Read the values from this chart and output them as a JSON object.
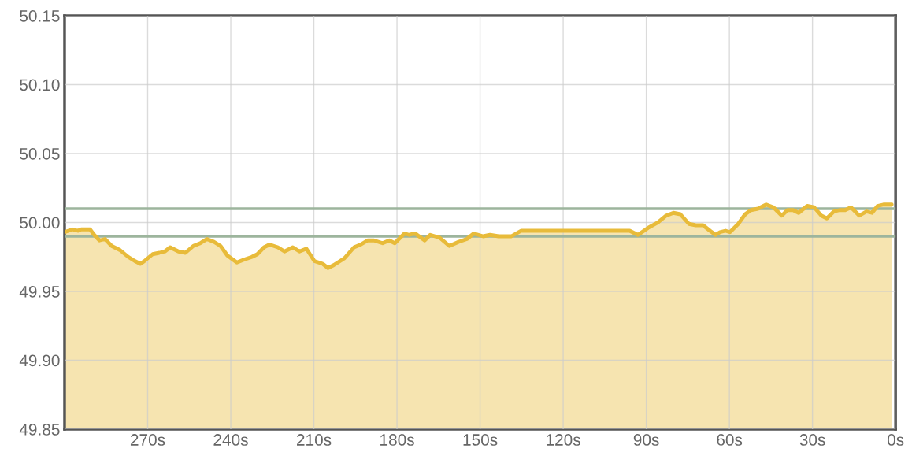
{
  "chart_data": {
    "type": "area",
    "color": "#e8bb3a",
    "x": [
      300,
      297.2,
      295.2,
      294,
      290.8,
      289.3,
      287.4,
      285.4,
      283,
      280,
      277,
      274.6,
      272.6,
      271.2,
      268.2,
      265.8,
      263.8,
      261.9,
      258.9,
      256.4,
      253.5,
      251,
      248.6,
      246.1,
      243.7,
      241.2,
      237.8,
      235.3,
      232.4,
      230.4,
      228,
      226,
      223,
      220.6,
      217.6,
      215.2,
      212.7,
      209.8,
      206.8,
      204.9,
      202.9,
      199,
      195.5,
      193.1,
      190.6,
      188.3,
      185.2,
      182.8,
      180.8,
      177.3,
      175.6,
      173.4,
      170,
      168,
      164.6,
      161.1,
      157.7,
      154.8,
      152.3,
      148.9,
      146.4,
      143.3,
      138.7,
      135.2,
      96,
      93,
      89.4,
      85.8,
      82.8,
      80.2,
      77.7,
      74.6,
      72.1,
      69.5,
      67,
      65,
      63.4,
      61.4,
      59.8,
      56.8,
      54.3,
      52.2,
      49.7,
      46.7,
      44.1,
      41.1,
      39,
      37,
      35,
      31.9,
      29.4,
      26.8,
      24.8,
      22.3,
      20.2,
      18.2,
      16.1,
      13.1,
      10.5,
      8.5,
      6.5,
      4.4,
      1.4
    ],
    "values": [
      49.993,
      49.995,
      49.994,
      49.995,
      49.995,
      49.991,
      49.987,
      49.988,
      49.983,
      49.98,
      49.975,
      49.972,
      49.97,
      49.972,
      49.977,
      49.978,
      49.979,
      49.982,
      49.979,
      49.978,
      49.983,
      49.985,
      49.988,
      49.986,
      49.983,
      49.976,
      49.971,
      49.973,
      49.975,
      49.977,
      49.982,
      49.984,
      49.982,
      49.979,
      49.982,
      49.979,
      49.981,
      49.972,
      49.97,
      49.967,
      49.969,
      49.974,
      49.982,
      49.984,
      49.987,
      49.987,
      49.985,
      49.987,
      49.985,
      49.992,
      49.991,
      49.992,
      49.987,
      49.991,
      49.989,
      49.983,
      49.986,
      49.988,
      49.992,
      49.99,
      49.991,
      49.99,
      49.99,
      49.994,
      49.994,
      49.991,
      49.996,
      50.0,
      50.005,
      50.007,
      50.006,
      49.999,
      49.998,
      49.998,
      49.994,
      49.991,
      49.993,
      49.994,
      49.993,
      49.999,
      50.006,
      50.009,
      50.01,
      50.013,
      50.011,
      50.005,
      50.009,
      50.009,
      50.007,
      50.012,
      50.011,
      50.005,
      50.003,
      50.008,
      50.009,
      50.009,
      50.011,
      50.005,
      50.008,
      50.007,
      50.012,
      50.013,
      50.013
    ],
    "xlim": [
      300,
      0
    ],
    "xticks": [
      {
        "value": 270,
        "label": "270s"
      },
      {
        "value": 240,
        "label": "240s"
      },
      {
        "value": 210,
        "label": "210s"
      },
      {
        "value": 180,
        "label": "180s"
      },
      {
        "value": 150,
        "label": "150s"
      },
      {
        "value": 120,
        "label": "120s"
      },
      {
        "value": 90,
        "label": "90s"
      },
      {
        "value": 60,
        "label": "60s"
      },
      {
        "value": 30,
        "label": "30s"
      },
      {
        "value": 0,
        "label": "0s"
      }
    ],
    "ylim": [
      49.85,
      50.15
    ],
    "yticks": [
      {
        "value": 49.85,
        "label": "49.85"
      },
      {
        "value": 49.9,
        "label": "49.90"
      },
      {
        "value": 49.95,
        "label": "49.95"
      },
      {
        "value": 50.0,
        "label": "50.00"
      },
      {
        "value": 50.05,
        "label": "50.05"
      },
      {
        "value": 50.1,
        "label": "50.10"
      },
      {
        "value": 50.15,
        "label": "50.15"
      }
    ],
    "ref_lines": [
      {
        "axis": "y",
        "value": 50.01,
        "color": "#9db59d"
      },
      {
        "axis": "y",
        "value": 49.99,
        "color": "#9db59d"
      }
    ],
    "grid": true,
    "marker": "none",
    "line_style": "solid",
    "legend": false
  }
}
